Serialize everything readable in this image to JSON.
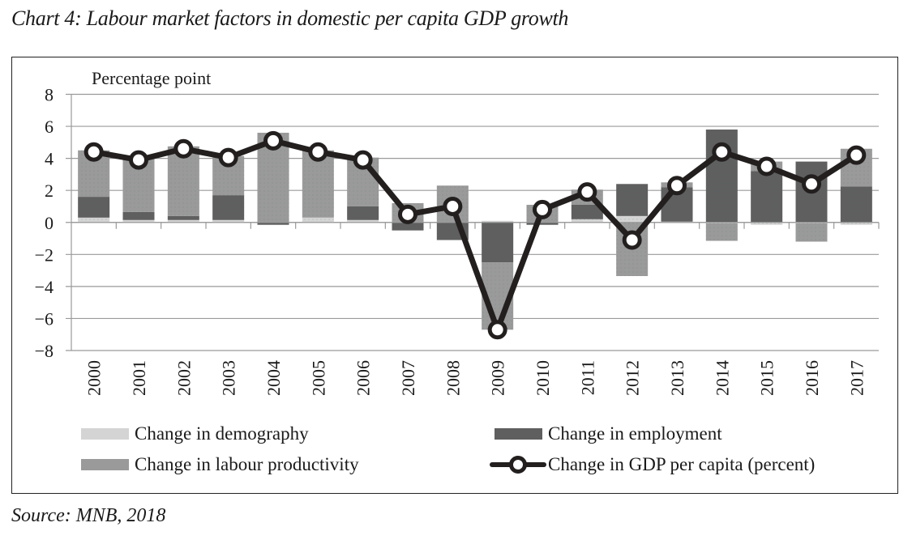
{
  "title": "Chart 4: Labour market factors in domestic per capita GDP growth",
  "source": "Source: MNB, 2018",
  "colors": {
    "demography": "#d4d4d4",
    "employment": "#5f5f5f",
    "productivity": "#9a9a9a",
    "gdp_line": "#231f1f",
    "grid": "#9a9a9a"
  },
  "chart_data": {
    "type": "bar",
    "stacked": true,
    "title": "Chart 4: Labour market factors in domestic per capita GDP growth",
    "ylabel": "Percentage point",
    "xlabel": "",
    "ylim": [
      -8,
      8
    ],
    "yticks": [
      8,
      6,
      4,
      2,
      0,
      -2,
      -4,
      -6,
      -8
    ],
    "ytick_labels": [
      "8",
      "6",
      "4",
      "2",
      "0",
      "−2",
      "−4",
      "−6",
      "−8"
    ],
    "grid": true,
    "legend_position": "bottom",
    "categories": [
      "2000",
      "2001",
      "2002",
      "2003",
      "2004",
      "2005",
      "2006",
      "2007",
      "2008",
      "2009",
      "2010",
      "2011",
      "2012",
      "2013",
      "2014",
      "2015",
      "2016",
      "2017"
    ],
    "series": [
      {
        "name": "Change in demography",
        "type": "bar",
        "key": "demography",
        "values": [
          0.3,
          0.15,
          0.15,
          0.15,
          0.0,
          0.3,
          0.15,
          0.0,
          0.0,
          0.1,
          0.0,
          0.2,
          0.4,
          0.05,
          -0.05,
          -0.15,
          -0.05,
          -0.15
        ]
      },
      {
        "name": "Change in employment",
        "type": "bar",
        "key": "employment",
        "values": [
          1.3,
          0.5,
          0.25,
          1.55,
          -0.15,
          0.0,
          0.85,
          -0.5,
          -1.1,
          -2.5,
          -0.15,
          0.9,
          2.0,
          2.15,
          5.8,
          3.2,
          3.8,
          2.25
        ]
      },
      {
        "name": "Change in labour productivity",
        "type": "bar",
        "key": "productivity",
        "values": [
          2.9,
          3.5,
          4.35,
          2.45,
          5.6,
          4.2,
          3.05,
          1.2,
          2.3,
          -4.2,
          1.1,
          0.95,
          -3.35,
          0.3,
          -1.1,
          0.6,
          -1.15,
          2.35
        ]
      },
      {
        "name": "Change in GDP per capita (percent)",
        "type": "line",
        "key": "gdp",
        "values": [
          4.4,
          3.9,
          4.6,
          4.05,
          5.1,
          4.4,
          3.9,
          0.5,
          1.0,
          -6.7,
          0.8,
          1.9,
          -1.1,
          2.3,
          4.4,
          3.5,
          2.4,
          4.2
        ]
      }
    ]
  },
  "legend": [
    {
      "label": "Change in demography",
      "key": "demography",
      "kind": "swatch"
    },
    {
      "label": "Change in employment",
      "key": "employment",
      "kind": "swatch"
    },
    {
      "label": "Change in labour productivity",
      "key": "productivity",
      "kind": "swatch"
    },
    {
      "label": "Change in GDP per capita (percent)",
      "key": "gdp",
      "kind": "line"
    }
  ]
}
